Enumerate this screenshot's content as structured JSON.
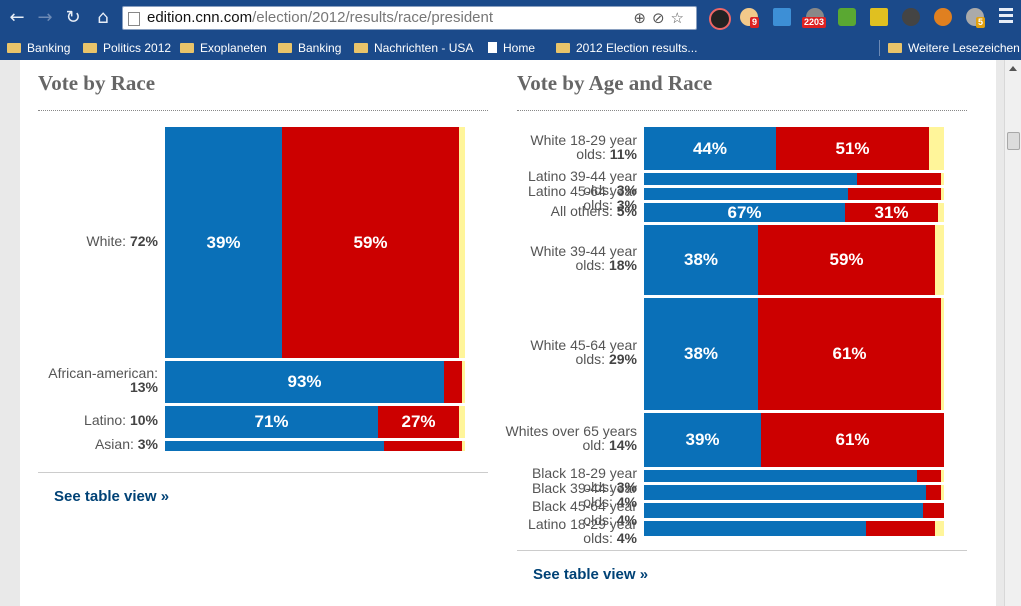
{
  "browser": {
    "url_host": "edition.cnn.com",
    "url_path": "/election/2012/results/race/president",
    "badges": {
      "ext2": "9",
      "ext4": "2203",
      "ext10": "5"
    },
    "bookmarks": [
      {
        "label": "Banking",
        "type": "folder"
      },
      {
        "label": "Politics 2012",
        "type": "folder"
      },
      {
        "label": "Exoplaneten",
        "type": "folder"
      },
      {
        "label": "Banking",
        "type": "folder"
      },
      {
        "label": "Nachrichten - USA",
        "type": "folder"
      },
      {
        "label": "Home",
        "type": "page"
      },
      {
        "label": "2012 Election results...",
        "type": "folder"
      }
    ],
    "other_bookmarks": "Weitere Lesezeichen"
  },
  "colors": {
    "obama": "#0a70b8",
    "romney": "#cc0000",
    "other": "#fff59a"
  },
  "race_panel": {
    "title": "Vote by Race",
    "link": "See table view »",
    "rows": [
      {
        "label": "White:",
        "pct": "72%",
        "share": 72,
        "obama": 39,
        "romney": 59,
        "obama_label": "39%",
        "romney_label": "59%"
      },
      {
        "label": "African-american:",
        "pct": "13%",
        "share": 13,
        "obama": 93,
        "romney": 6,
        "obama_label": "93%",
        "romney_label": ""
      },
      {
        "label": "Latino:",
        "pct": "10%",
        "share": 10,
        "obama": 71,
        "romney": 27,
        "obama_label": "71%",
        "romney_label": "27%"
      },
      {
        "label": "Asian:",
        "pct": "3%",
        "share": 3,
        "obama": 73,
        "romney": 26,
        "obama_label": "",
        "romney_label": ""
      }
    ]
  },
  "age_race_panel": {
    "title": "Vote by Age and Race",
    "link": "See table view »",
    "rows": [
      {
        "label": "White 18-29 year olds:",
        "pct": "11%",
        "share": 11,
        "obama": 44,
        "romney": 51,
        "obama_label": "44%",
        "romney_label": "51%"
      },
      {
        "label": "Latino 39-44 year olds:",
        "pct": "3%",
        "share": 3,
        "obama": 71,
        "romney": 28,
        "obama_label": "",
        "romney_label": ""
      },
      {
        "label": "Latino 45-64 year olds:",
        "pct": "3%",
        "share": 3,
        "obama": 68,
        "romney": 31,
        "obama_label": "",
        "romney_label": ""
      },
      {
        "label": "All others:",
        "pct": "5%",
        "share": 5,
        "obama": 67,
        "romney": 31,
        "obama_label": "67%",
        "romney_label": "31%"
      },
      {
        "label": "White 39-44 year olds:",
        "pct": "18%",
        "share": 18,
        "obama": 38,
        "romney": 59,
        "obama_label": "38%",
        "romney_label": "59%"
      },
      {
        "label": "White 45-64 year olds:",
        "pct": "29%",
        "share": 29,
        "obama": 38,
        "romney": 61,
        "obama_label": "38%",
        "romney_label": "61%"
      },
      {
        "label": "Whites over 65 years old:",
        "pct": "14%",
        "share": 14,
        "obama": 39,
        "romney": 61,
        "obama_label": "39%",
        "romney_label": "61%"
      },
      {
        "label": "Black 18-29 year olds:",
        "pct": "3%",
        "share": 3,
        "obama": 91,
        "romney": 8,
        "obama_label": "",
        "romney_label": ""
      },
      {
        "label": "Black 39-44 year olds:",
        "pct": "4%",
        "share": 4,
        "obama": 94,
        "romney": 5,
        "obama_label": "",
        "romney_label": ""
      },
      {
        "label": "Black 45-64 year olds:",
        "pct": "4%",
        "share": 4,
        "obama": 93,
        "romney": 7,
        "obama_label": "",
        "romney_label": ""
      },
      {
        "label": "Latino 18-29 year olds:",
        "pct": "4%",
        "share": 4,
        "obama": 74,
        "romney": 23,
        "obama_label": "",
        "romney_label": ""
      }
    ]
  }
}
